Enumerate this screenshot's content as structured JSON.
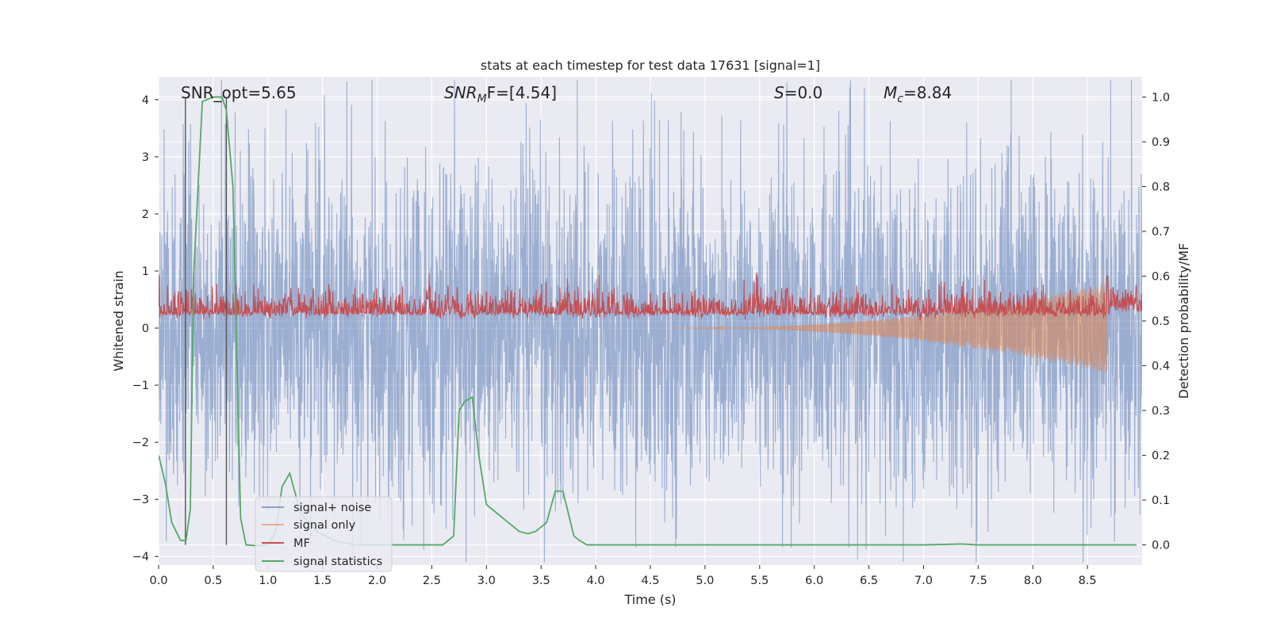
{
  "chart_data": {
    "type": "line",
    "title": "stats at each timestep for test data 17631 [signal=1]",
    "xlabel": "Time (s)",
    "ylabel": "Whitened strain",
    "y2label": "Detection probability/MF",
    "xlim": [
      0,
      9.0
    ],
    "ylim": [
      -4.15,
      4.4
    ],
    "y2lim": [
      -0.045,
      1.045
    ],
    "xticks": [
      0.0,
      0.5,
      1.0,
      1.5,
      2.0,
      2.5,
      3.0,
      3.5,
      4.0,
      4.5,
      5.0,
      5.5,
      6.0,
      6.5,
      7.0,
      7.5,
      8.0,
      8.5
    ],
    "xtick_labels": [
      "0.0",
      "0.5",
      "1.0",
      "1.5",
      "2.0",
      "2.5",
      "3.0",
      "3.5",
      "4.0",
      "4.5",
      "5.0",
      "5.5",
      "6.0",
      "6.5",
      "7.0",
      "7.5",
      "8.0",
      "8.5"
    ],
    "yticks": [
      4,
      3,
      2,
      1,
      0,
      -1,
      -2,
      -3,
      -4
    ],
    "ytick_labels": [
      "4",
      "3",
      "2",
      "1",
      "0",
      "−1",
      "−2",
      "−3",
      "−4"
    ],
    "y2ticks": [
      1.0,
      0.9,
      0.8,
      0.7,
      0.6,
      0.5,
      0.4,
      0.3,
      0.2,
      0.1,
      0.0
    ],
    "y2tick_labels": [
      "1.0",
      "0.9",
      "0.8",
      "0.7",
      "0.6",
      "0.5",
      "0.4",
      "0.3",
      "0.2",
      "0.1",
      "0.0"
    ],
    "annotations": {
      "snr_opt": "SNR_opt=5.65",
      "snr_mf_prefix": "SNR",
      "snr_mf_sub": "M",
      "snr_mf_suffix": "F=[4.54]",
      "s_label": "S",
      "s_value": "=0.0",
      "mc_label": "M",
      "mc_sub": "c",
      "mc_value": "=8.84"
    },
    "vertical_lines": [
      0.245,
      0.62
    ],
    "legend": {
      "location": "lower-left",
      "entries": [
        {
          "label": "signal+ noise",
          "color": "#4c72b0"
        },
        {
          "label": "signal only",
          "color": "#dd8452"
        },
        {
          "label": "MF",
          "color": "#c44e52"
        },
        {
          "label": "signal statistics",
          "color": "#55a868"
        }
      ]
    },
    "series": [
      {
        "name": "signal+ noise",
        "axis": "left",
        "style": "noise",
        "amplitude_std": 1.45,
        "duration": 9.0
      },
      {
        "name": "signal only",
        "axis": "left",
        "style": "chirp",
        "chirp_start": 4.7,
        "chirp_end": 8.68,
        "max_amplitude": 0.8
      },
      {
        "name": "MF",
        "axis": "right",
        "style": "noise-positive",
        "baseline": 0.52,
        "spread": 0.03,
        "spike_time": 8.68,
        "spike_value": 0.6
      },
      {
        "name": "signal statistics",
        "axis": "right",
        "style": "line",
        "x": [
          0.0,
          0.06,
          0.12,
          0.2,
          0.25,
          0.29,
          0.32,
          0.4,
          0.5,
          0.58,
          0.62,
          0.68,
          0.75,
          0.8,
          0.9,
          1.0,
          1.07,
          1.13,
          1.2,
          1.3,
          1.45,
          1.6,
          1.8,
          2.0,
          2.3,
          2.6,
          2.7,
          2.75,
          2.8,
          2.87,
          2.93,
          3.0,
          3.1,
          3.2,
          3.3,
          3.38,
          3.45,
          3.55,
          3.63,
          3.7,
          3.75,
          3.8,
          3.85,
          3.92,
          4.0,
          4.5,
          5.0,
          6.0,
          7.0,
          7.35,
          7.5,
          8.0,
          8.5,
          8.95
        ],
        "y": [
          0.2,
          0.14,
          0.05,
          0.01,
          0.01,
          0.08,
          0.6,
          0.99,
          1.0,
          1.0,
          0.97,
          0.8,
          0.06,
          0.0,
          -0.002,
          0.0,
          0.03,
          0.13,
          0.16,
          0.07,
          0.03,
          0.01,
          0.0,
          0.0,
          0.0,
          0.0,
          0.02,
          0.3,
          0.32,
          0.33,
          0.2,
          0.09,
          0.07,
          0.05,
          0.03,
          0.025,
          0.03,
          0.05,
          0.12,
          0.12,
          0.07,
          0.02,
          0.01,
          0.0,
          0.0,
          0.0,
          0.0,
          0.0,
          0.0,
          0.002,
          0.0,
          0.0,
          0.0,
          0.0
        ]
      }
    ]
  }
}
